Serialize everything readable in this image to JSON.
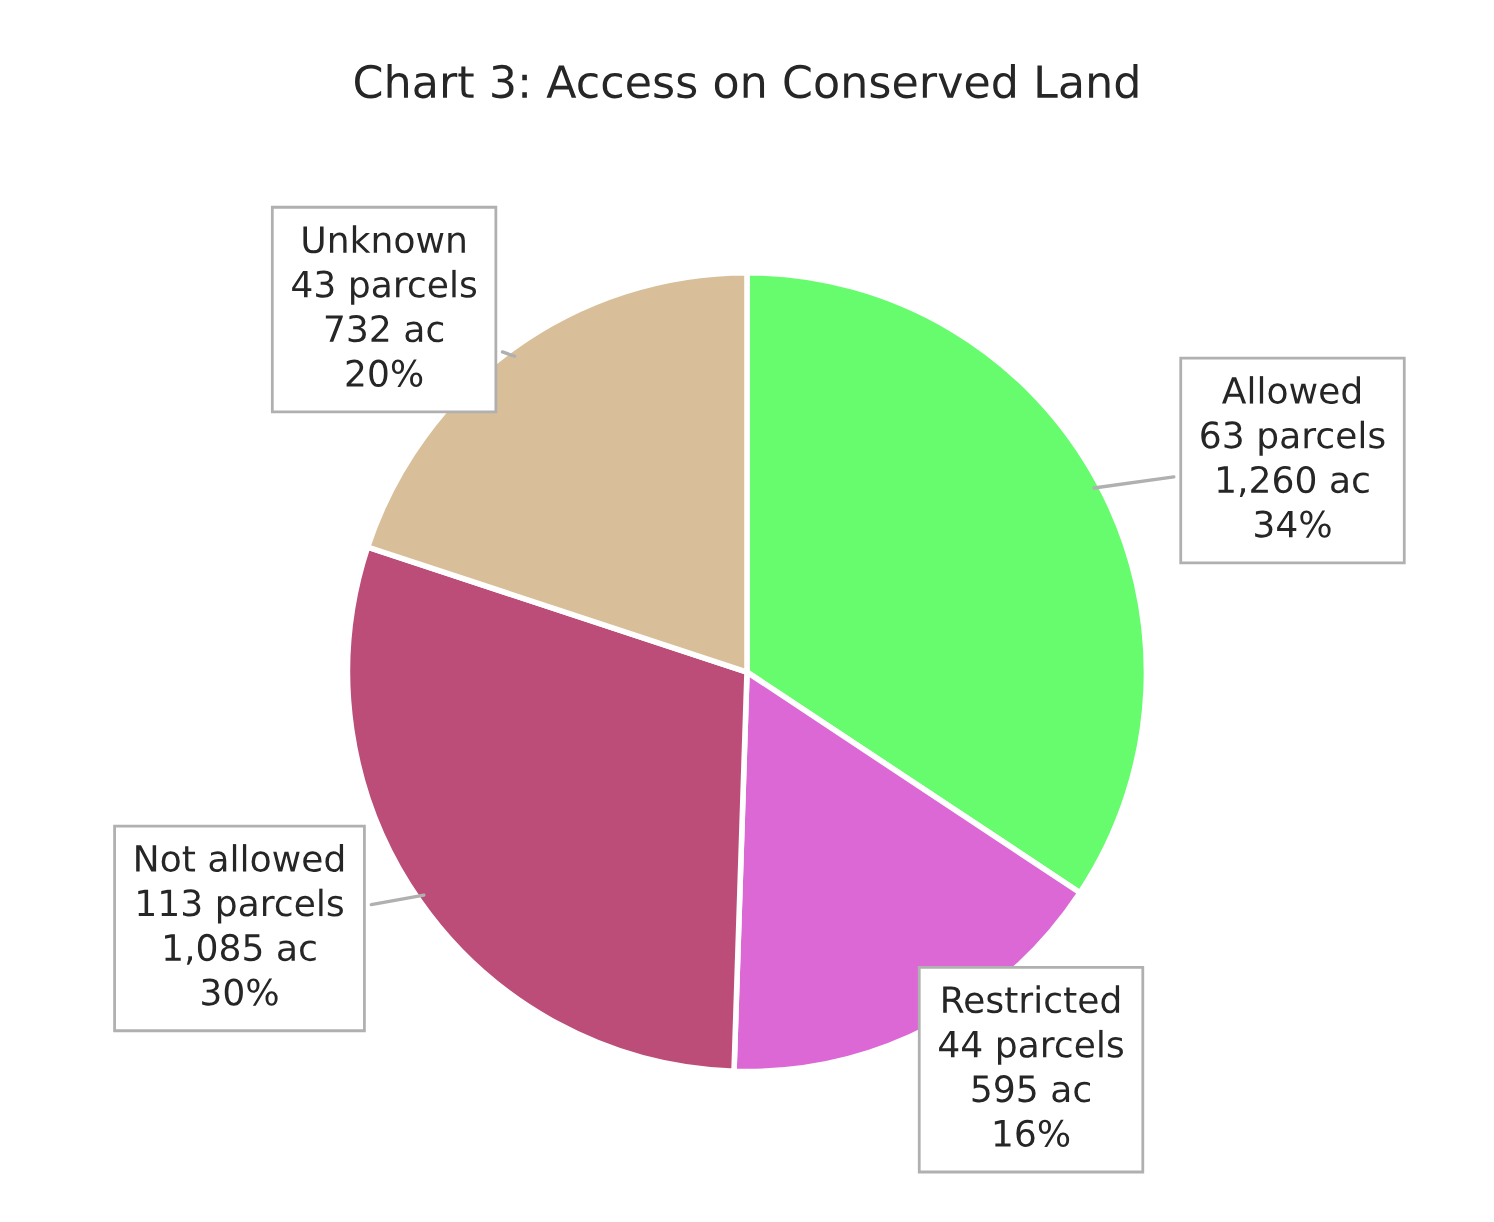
{
  "chart_data": {
    "type": "pie",
    "title": "Chart 3: Access on Conserved Land",
    "categories": [
      "Allowed",
      "Restricted",
      "Not allowed",
      "Unknown"
    ],
    "values": [
      1260,
      595,
      1085,
      732
    ],
    "value_labels": [
      "63 parcels\n1,260 ac\n34%",
      "44 parcels\n595 ac\n16%",
      "113 parcels\n1,085 ac\n30%",
      "43 parcels\n732 ac\n20%"
    ],
    "colors": [
      "#66fc6e",
      "#dc68d6",
      "#bc4d78",
      "#d8bf9a"
    ],
    "legend": false
  }
}
